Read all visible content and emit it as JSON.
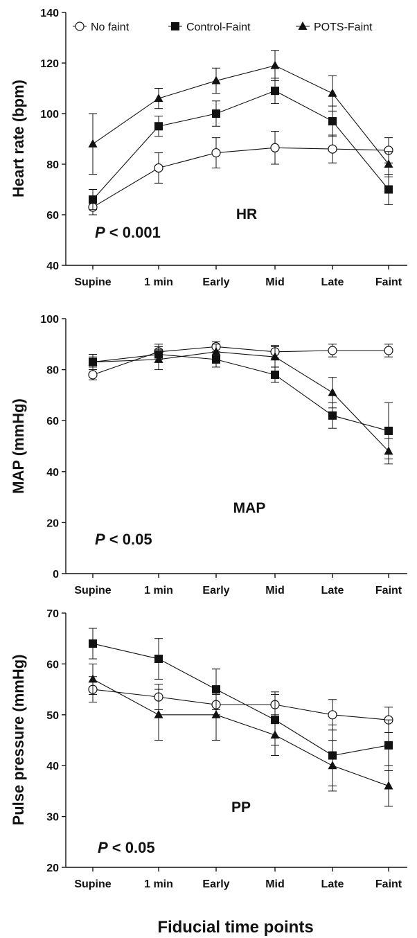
{
  "chart_data": [
    {
      "type": "line",
      "categories": [
        "Supine",
        "1 min",
        "Early",
        "Mid",
        "Late",
        "Faint"
      ],
      "ylabel": "Heart rate (bpm)",
      "ylim": [
        40,
        140
      ],
      "yticks": [
        40,
        60,
        80,
        100,
        120,
        140
      ],
      "annotation_label": "HR",
      "p_prefix": "P",
      "p_value": " < 0.001",
      "legend": {
        "position": "top",
        "entries": [
          "No faint",
          "Control-Faint",
          "POTS-Faint"
        ]
      },
      "series": [
        {
          "name": "No faint",
          "marker": "open-circle",
          "values": [
            63,
            78.5,
            84.5,
            86.5,
            86,
            85.5
          ],
          "errors": [
            3,
            6,
            6,
            6.5,
            5.5,
            5
          ]
        },
        {
          "name": "Control-Faint",
          "marker": "filled-square",
          "values": [
            66,
            95,
            100,
            109,
            97,
            70
          ],
          "errors": [
            4,
            4,
            5,
            5,
            6,
            6
          ]
        },
        {
          "name": "POTS-Faint",
          "marker": "filled-triangle",
          "values": [
            88,
            106,
            113,
            119,
            108,
            80
          ],
          "errors": [
            12,
            4,
            5,
            6,
            7,
            5
          ]
        }
      ]
    },
    {
      "type": "line",
      "categories": [
        "Supine",
        "1 min",
        "Early",
        "Mid",
        "Late",
        "Faint"
      ],
      "ylabel": "MAP (mmHg)",
      "ylim": [
        0,
        100
      ],
      "yticks": [
        0,
        20,
        40,
        60,
        80,
        100
      ],
      "annotation_label": "MAP",
      "p_prefix": "P",
      "p_value": " < 0.05",
      "series": [
        {
          "name": "No faint",
          "marker": "open-circle",
          "values": [
            78,
            87,
            89,
            87,
            87.5,
            87.5
          ],
          "errors": [
            2,
            3,
            2,
            2.5,
            2.5,
            2.5
          ]
        },
        {
          "name": "Control-Faint",
          "marker": "filled-square",
          "values": [
            83,
            86,
            84,
            78,
            62,
            56
          ],
          "errors": [
            3,
            3,
            3,
            3,
            5,
            11
          ]
        },
        {
          "name": "POTS-Faint",
          "marker": "filled-triangle",
          "values": [
            83,
            84,
            87,
            85,
            71,
            48
          ],
          "errors": [
            2,
            4,
            3,
            4,
            6,
            5
          ]
        }
      ]
    },
    {
      "type": "line",
      "categories": [
        "Supine",
        "1 min",
        "Early",
        "Mid",
        "Late",
        "Faint"
      ],
      "ylabel": "Pulse pressure (mmHg)",
      "xlabel": "Fiducial time points",
      "ylim": [
        20,
        70
      ],
      "yticks": [
        20,
        30,
        40,
        50,
        60,
        70
      ],
      "annotation_label": "PP",
      "p_prefix": "P",
      "p_value": " < 0.05",
      "series": [
        {
          "name": "No faint",
          "marker": "open-circle",
          "values": [
            55,
            53.5,
            52,
            52,
            50,
            49
          ],
          "errors": [
            2.5,
            2.5,
            2,
            2.5,
            3,
            2.5
          ]
        },
        {
          "name": "Control-Faint",
          "marker": "filled-square",
          "values": [
            64,
            61,
            55,
            49,
            42,
            44
          ],
          "errors": [
            3,
            4,
            4,
            5,
            6,
            5
          ]
        },
        {
          "name": "POTS-Faint",
          "marker": "filled-triangle",
          "values": [
            57,
            50,
            50,
            46,
            40,
            36
          ],
          "errors": [
            3,
            5,
            5,
            4,
            5,
            4
          ]
        }
      ]
    }
  ]
}
